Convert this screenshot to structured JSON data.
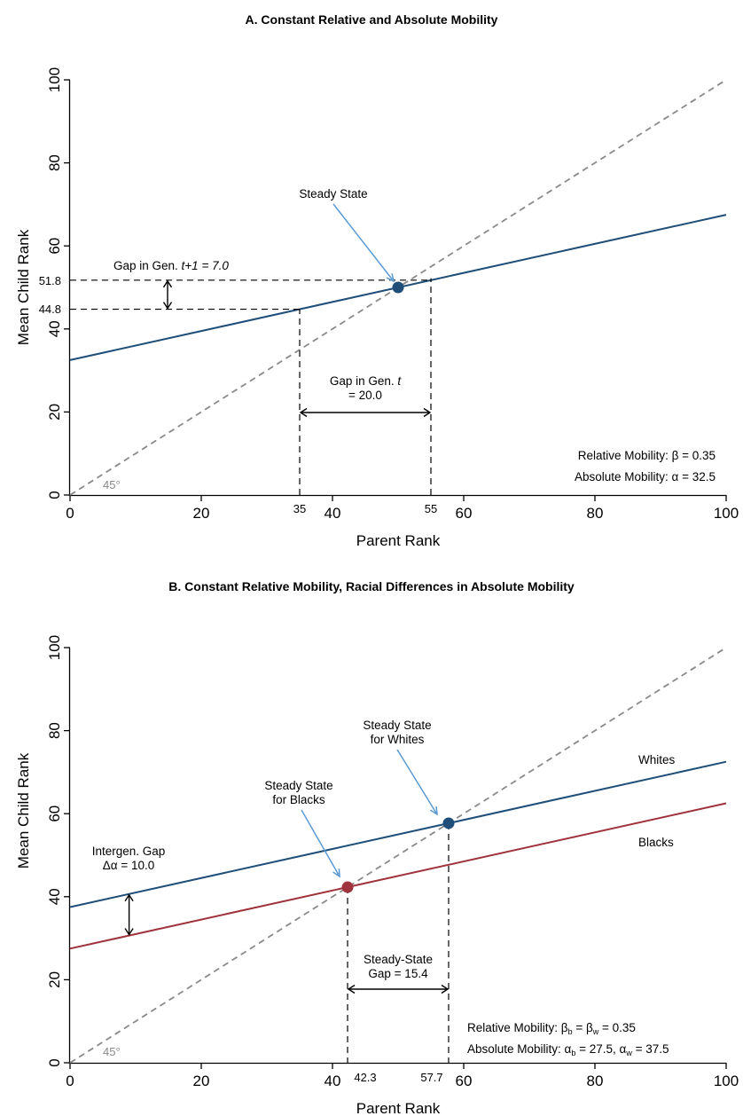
{
  "chart_data": [
    {
      "type": "line",
      "title": "A. Constant Relative and Absolute Mobility",
      "xlabel": "Parent Rank",
      "ylabel": "Mean Child Rank",
      "xlim": [
        0,
        100
      ],
      "ylim": [
        0,
        100
      ],
      "xticks": [
        "0",
        "20",
        "40",
        "60",
        "80",
        "100"
      ],
      "yticks": [
        "0",
        "20",
        "40",
        "60",
        "80",
        "100"
      ],
      "series": [
        {
          "intercept": 32.5,
          "slope": 0.35,
          "color": "#1f4e79"
        }
      ],
      "diagonal_label": "45°",
      "steady_state": {
        "x": 50,
        "y": 50,
        "color": "#1f4e79"
      },
      "annotations": {
        "steady_state_label": "Steady State",
        "gap_t_line1": "Gap in Gen. ",
        "gap_t_italic": "t",
        "gap_t_line2": "= 20.0",
        "gap_t1_prefix": "Gap in Gen. ",
        "gap_t1_italic": "t+1 =  7.0",
        "y_marker_high": "51.8",
        "y_marker_low": "44.8",
        "x_marker_left": "35",
        "x_marker_right": "55",
        "rel_mobility": "Relative Mobility: β = 0.35",
        "abs_mobility": "Absolute Mobility: α = 32.5"
      },
      "markers": {
        "x_left": 35,
        "x_right": 55,
        "y_low": 44.75,
        "y_high": 51.75
      }
    },
    {
      "type": "line",
      "title": "B. Constant Relative Mobility, Racial Differences in Absolute Mobility",
      "xlabel": "Parent Rank",
      "ylabel": "Mean Child Rank",
      "xlim": [
        0,
        100
      ],
      "ylim": [
        0,
        100
      ],
      "xticks": [
        "0",
        "20",
        "40",
        "60",
        "80",
        "100"
      ],
      "yticks": [
        "0",
        "20",
        "40",
        "60",
        "80",
        "100"
      ],
      "series": [
        {
          "name": "Whites",
          "intercept": 37.5,
          "slope": 0.35,
          "color": "#1f4e79"
        },
        {
          "name": "Blacks",
          "intercept": 27.5,
          "slope": 0.35,
          "color": "#a0323c"
        }
      ],
      "diagonal_label": "45°",
      "steady_states": [
        {
          "x": 57.7,
          "y": 57.7,
          "color": "#1f4e79"
        },
        {
          "x": 42.3,
          "y": 42.3,
          "color": "#a0323c"
        }
      ],
      "annotations": {
        "steady_white_line1": "Steady State",
        "steady_white_line2": "for Whites",
        "steady_black_line1": "Steady State",
        "steady_black_line2": "for Blacks",
        "intergen_line1": "Intergen. Gap",
        "intergen_line2": "Δα = 10.0",
        "ss_gap_line1": "Steady-State",
        "ss_gap_line2": "Gap = 15.4",
        "x_marker_left": "42.3",
        "x_marker_right": "57.7",
        "rel_mobility": "Relative Mobility: β",
        "rel_sub_b": "b",
        "rel_mid": " = β",
        "rel_sub_w": "w",
        "rel_end": " =  0.35",
        "abs_mobility": "Absolute Mobility: α",
        "abs_sub_b": "b",
        "abs_mid": " = 27.5, α",
        "abs_sub_w": "w",
        "abs_end": " = 37.5"
      },
      "intergen_gap_x": 9
    }
  ]
}
